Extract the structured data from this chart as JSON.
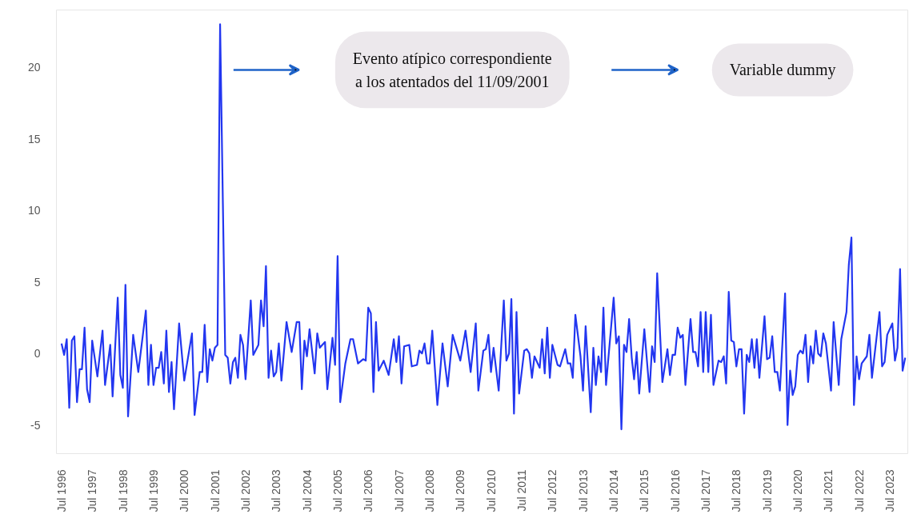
{
  "chart_data": {
    "type": "line",
    "x": [
      "1996-07",
      "1996-08",
      "1996-09",
      "1996-10",
      "1996-11",
      "1996-12",
      "1997-01",
      "1997-02",
      "1997-03",
      "1997-04",
      "1997-05",
      "1997-06",
      "1997-07",
      "1997-09",
      "1997-11",
      "1997-12",
      "1998-02",
      "1998-03",
      "1998-05",
      "1998-06",
      "1998-07",
      "1998-08",
      "1998-09",
      "1998-11",
      "1999-01",
      "1999-04",
      "1999-05",
      "1999-06",
      "1999-07",
      "1999-08",
      "1999-09",
      "1999-10",
      "1999-11",
      "1999-12",
      "2000-01",
      "2000-02",
      "2000-03",
      "2000-05",
      "2000-07",
      "2000-10",
      "2000-11",
      "2001-01",
      "2001-02",
      "2001-03",
      "2001-04",
      "2001-05",
      "2001-06",
      "2001-07",
      "2001-08",
      "2001-09",
      "2001-11",
      "2001-12",
      "2002-01",
      "2002-02",
      "2002-03",
      "2002-04",
      "2002-05",
      "2002-06",
      "2002-07",
      "2002-09",
      "2002-10",
      "2002-12",
      "2003-01",
      "2003-02",
      "2003-03",
      "2003-04",
      "2003-05",
      "2003-06",
      "2003-07",
      "2003-08",
      "2003-09",
      "2003-11",
      "2004-01",
      "2004-03",
      "2004-04",
      "2004-05",
      "2004-06",
      "2004-07",
      "2004-08",
      "2004-10",
      "2004-11",
      "2004-12",
      "2005-02",
      "2005-03",
      "2005-05",
      "2005-06",
      "2005-07",
      "2005-08",
      "2005-10",
      "2005-12",
      "2006-01",
      "2006-03",
      "2006-05",
      "2006-06",
      "2006-07",
      "2006-08",
      "2006-09",
      "2006-10",
      "2006-11",
      "2007-01",
      "2007-03",
      "2007-05",
      "2007-06",
      "2007-07",
      "2007-08",
      "2007-09",
      "2007-11",
      "2007-12",
      "2008-02",
      "2008-03",
      "2008-04",
      "2008-05",
      "2008-06",
      "2008-07",
      "2008-08",
      "2008-10",
      "2008-12",
      "2009-02",
      "2009-04",
      "2009-07",
      "2009-09",
      "2009-11",
      "2010-01",
      "2010-02",
      "2010-04",
      "2010-05",
      "2010-06",
      "2010-07",
      "2010-08",
      "2010-10",
      "2010-12",
      "2011-01",
      "2011-02",
      "2011-03",
      "2011-04",
      "2011-05",
      "2011-06",
      "2011-08",
      "2011-09",
      "2011-10",
      "2011-11",
      "2011-12",
      "2012-02",
      "2012-03",
      "2012-04",
      "2012-05",
      "2012-06",
      "2012-07",
      "2012-09",
      "2012-10",
      "2012-12",
      "2013-01",
      "2013-02",
      "2013-03",
      "2013-04",
      "2013-06",
      "2013-07",
      "2013-08",
      "2013-10",
      "2013-11",
      "2013-12",
      "2014-01",
      "2014-02",
      "2014-03",
      "2014-04",
      "2014-07",
      "2014-08",
      "2014-09",
      "2014-10",
      "2014-11",
      "2014-12",
      "2015-01",
      "2015-02",
      "2015-03",
      "2015-04",
      "2015-05",
      "2015-07",
      "2015-09",
      "2015-10",
      "2015-11",
      "2015-12",
      "2016-02",
      "2016-04",
      "2016-05",
      "2016-06",
      "2016-07",
      "2016-08",
      "2016-09",
      "2016-10",
      "2016-11",
      "2017-01",
      "2017-02",
      "2017-03",
      "2017-04",
      "2017-05",
      "2017-06",
      "2017-07",
      "2017-08",
      "2017-09",
      "2017-10",
      "2017-12",
      "2018-01",
      "2018-02",
      "2018-03",
      "2018-04",
      "2018-05",
      "2018-06",
      "2018-07",
      "2018-08",
      "2018-09",
      "2018-10",
      "2018-11",
      "2018-12",
      "2019-01",
      "2019-02",
      "2019-03",
      "2019-04",
      "2019-06",
      "2019-07",
      "2019-08",
      "2019-09",
      "2019-10",
      "2019-11",
      "2019-12",
      "2020-02",
      "2020-03",
      "2020-04",
      "2020-05",
      "2020-06",
      "2020-07",
      "2020-08",
      "2020-09",
      "2020-10",
      "2020-11",
      "2020-12",
      "2021-01",
      "2021-02",
      "2021-03",
      "2021-04",
      "2021-05",
      "2021-06",
      "2021-08",
      "2021-09",
      "2021-11",
      "2021-12",
      "2022-02",
      "2022-03",
      "2022-04",
      "2022-05",
      "2022-06",
      "2022-07",
      "2022-08",
      "2022-10",
      "2022-11",
      "2022-12",
      "2023-03",
      "2023-04",
      "2023-05",
      "2023-06",
      "2023-08",
      "2023-09",
      "2023-10",
      "2023-11",
      "2023-12",
      "2024-01"
    ],
    "series": [
      {
        "color": "#2236f0",
        "values": [
          0.7,
          -0.1,
          1.0,
          -3.8,
          0.9,
          1.2,
          -3.4,
          -1.1,
          -1.1,
          1.8,
          -2.5,
          -3.4,
          0.9,
          -1.6,
          1.6,
          -2.2,
          0.6,
          -3.0,
          3.9,
          -1.5,
          -2.4,
          4.8,
          -4.4,
          1.3,
          -1.3,
          3.0,
          -2.2,
          0.6,
          -2.2,
          -1.0,
          -1.0,
          0.1,
          -2.1,
          1.6,
          -2.7,
          -0.6,
          -3.9,
          2.1,
          -1.9,
          1.4,
          -4.3,
          -1.3,
          -1.3,
          2.0,
          -2.0,
          0.3,
          -0.5,
          0.4,
          0.6,
          23.0,
          -0.1,
          -0.3,
          -2.1,
          -0.6,
          -0.3,
          -1.7,
          1.3,
          0.6,
          -1.8,
          3.7,
          -0.1,
          0.6,
          3.7,
          1.9,
          6.1,
          -1.7,
          0.2,
          -1.6,
          -1.3,
          0.7,
          -1.9,
          2.2,
          0.1,
          2.2,
          2.2,
          -2.5,
          0.9,
          -0.2,
          1.7,
          -1.4,
          1.4,
          0.4,
          0.8,
          -2.5,
          1.1,
          -0.8,
          6.8,
          -3.4,
          -0.7,
          1.0,
          1.0,
          -0.7,
          -0.4,
          -0.5,
          3.2,
          2.8,
          -2.7,
          2.2,
          -1.2,
          -0.5,
          -1.5,
          1.0,
          -0.6,
          1.2,
          -2.1,
          0.5,
          0.6,
          -0.9,
          -0.8,
          0.2,
          0.0,
          0.7,
          -0.7,
          -0.7,
          1.6,
          -3.6,
          0.7,
          -2.3,
          1.3,
          -0.5,
          1.6,
          -1.3,
          2.1,
          -2.6,
          0.2,
          0.3,
          1.3,
          -1.3,
          0.4,
          -2.6,
          3.7,
          -0.5,
          0.0,
          3.8,
          -4.2,
          2.9,
          -2.8,
          0.2,
          0.3,
          0.0,
          -1.7,
          -0.2,
          -1.0,
          1.0,
          -1.4,
          1.8,
          -1.7,
          0.6,
          -0.8,
          -0.9,
          0.3,
          -0.7,
          -0.7,
          -1.7,
          2.7,
          -0.2,
          -2.6,
          1.9,
          -4.1,
          0.4,
          -2.2,
          -0.2,
          -1.3,
          3.2,
          -2.2,
          3.9,
          0.7,
          1.2,
          -5.3,
          0.6,
          0.1,
          2.4,
          -0.3,
          -1.8,
          0.1,
          -2.8,
          1.7,
          -2.7,
          0.5,
          -0.6,
          5.6,
          -2.0,
          0.3,
          -1.5,
          -0.1,
          -0.1,
          1.8,
          1.1,
          1.3,
          -2.2,
          2.4,
          0.1,
          0.1,
          -0.9,
          2.9,
          -1.3,
          2.9,
          -1.3,
          2.7,
          -2.2,
          -0.5,
          -0.6,
          -0.2,
          -2.1,
          4.3,
          0.9,
          0.8,
          -0.9,
          0.3,
          0.3,
          -4.2,
          -0.1,
          -0.6,
          1.0,
          -1.0,
          1.0,
          -1.7,
          2.6,
          -0.4,
          -0.3,
          1.2,
          -1.3,
          -1.3,
          -2.6,
          4.2,
          -5.0,
          -1.2,
          -2.9,
          -2.3,
          -0.1,
          0.2,
          0.0,
          1.3,
          -2.0,
          0.5,
          -0.7,
          1.6,
          0.0,
          -0.2,
          1.4,
          0.7,
          -2.6,
          2.2,
          -2.2,
          1.0,
          2.9,
          6.2,
          8.1,
          -3.6,
          -0.2,
          -1.8,
          -0.7,
          -0.2,
          1.3,
          -1.7,
          2.9,
          -0.9,
          -0.6,
          1.3,
          2.1,
          -0.5,
          0.4,
          5.9,
          -1.2,
          -0.3
        ]
      }
    ],
    "xlim": [
      "1996-05",
      "2024-02"
    ],
    "xticks": [
      {
        "value": "1996-07",
        "label": "Jul 1996"
      },
      {
        "value": "1997-07",
        "label": "Jul 1997"
      },
      {
        "value": "1998-07",
        "label": "Jul 1998"
      },
      {
        "value": "1999-07",
        "label": "Jul 1999"
      },
      {
        "value": "2000-07",
        "label": "Jul 2000"
      },
      {
        "value": "2001-07",
        "label": "Jul 2001"
      },
      {
        "value": "2002-07",
        "label": "Jul 2002"
      },
      {
        "value": "2003-07",
        "label": "Jul 2003"
      },
      {
        "value": "2004-07",
        "label": "Jul 2004"
      },
      {
        "value": "2005-07",
        "label": "Jul 2005"
      },
      {
        "value": "2006-07",
        "label": "Jul 2006"
      },
      {
        "value": "2007-07",
        "label": "Jul 2007"
      },
      {
        "value": "2008-07",
        "label": "Jul 2008"
      },
      {
        "value": "2009-07",
        "label": "Jul 2009"
      },
      {
        "value": "2010-07",
        "label": "Jul 2010"
      },
      {
        "value": "2011-07",
        "label": "Jul 2011"
      },
      {
        "value": "2012-07",
        "label": "Jul 2012"
      },
      {
        "value": "2013-07",
        "label": "Jul 2013"
      },
      {
        "value": "2014-07",
        "label": "Jul 2014"
      },
      {
        "value": "2015-07",
        "label": "Jul 2015"
      },
      {
        "value": "2016-07",
        "label": "Jul 2016"
      },
      {
        "value": "2017-07",
        "label": "Jul 2017"
      },
      {
        "value": "2018-07",
        "label": "Jul 2018"
      },
      {
        "value": "2019-07",
        "label": "Jul 2019"
      },
      {
        "value": "2020-07",
        "label": "Jul 2020"
      },
      {
        "value": "2021-07",
        "label": "Jul 2021"
      },
      {
        "value": "2022-07",
        "label": "Jul 2022"
      },
      {
        "value": "2023-07",
        "label": "Jul 2023"
      }
    ],
    "ylim": [
      -7,
      24
    ],
    "yticks": [
      -5,
      0,
      5,
      10,
      15,
      20
    ],
    "grid": false,
    "marker": "none",
    "line_style": "solid",
    "annotations": [
      "Evento atípico correspondiente\na los atentados del 11/09/2001",
      "Variable dummy"
    ]
  }
}
